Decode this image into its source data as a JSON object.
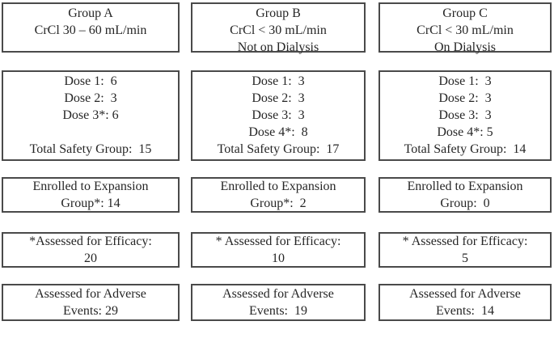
{
  "figure": {
    "description_colors": {
      "border": "#4a4a4a",
      "text": "#262626",
      "background": "#ffffff"
    },
    "columns": [
      {
        "id": "group-a",
        "header": "Group A\nCrCl 30 – 60 mL/min",
        "doses": "Dose 1:  6\nDose 2:  3\nDose 3*: 6\n\nTotal Safety Group:  15",
        "enrolled": "Enrolled to Expansion\nGroup*: 14",
        "efficacy": "*Assessed for Efficacy:\n20",
        "adverse": "Assessed for Adverse\nEvents: 29"
      },
      {
        "id": "group-b",
        "header": "Group B\nCrCl < 30 mL/min\nNot on Dialysis",
        "doses": "Dose 1:  3\nDose 2:  3\nDose 3:  3\nDose 4*:  8\nTotal Safety Group:  17",
        "enrolled": "Enrolled to Expansion\nGroup*:  2",
        "efficacy": "* Assessed for Efficacy:\n10",
        "adverse": "Assessed for Adverse\nEvents:  19"
      },
      {
        "id": "group-c",
        "header": "Group C\nCrCl < 30 mL/min\nOn Dialysis",
        "doses": "Dose 1:  3\nDose 2:  3\nDose 3:  3\nDose 4*: 5\nTotal Safety Group:  14",
        "enrolled": "Enrolled to Expansion\nGroup:  0",
        "efficacy": "* Assessed for Efficacy:\n5",
        "adverse": "Assessed for Adverse\nEvents:  14"
      }
    ]
  }
}
